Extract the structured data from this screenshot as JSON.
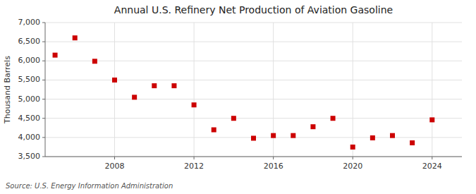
{
  "chart_data": {
    "type": "scatter",
    "title": "Annual U.S. Refinery Net Production of Aviation Gasoline",
    "y_label": "Thousand Barrels",
    "source": "Source: U.S. Energy Information Administration",
    "x": [
      2005,
      2006,
      2007,
      2008,
      2009,
      2010,
      2011,
      2012,
      2013,
      2014,
      2015,
      2016,
      2017,
      2018,
      2019,
      2020,
      2021,
      2022,
      2023,
      2024
    ],
    "values": [
      6150,
      6600,
      5990,
      5500,
      5050,
      5350,
      5350,
      4850,
      4200,
      4500,
      3980,
      4050,
      4050,
      4280,
      4500,
      3750,
      3990,
      4050,
      3860,
      4460
    ],
    "color": "#cc0000",
    "marker": "square",
    "xlim": [
      2004.5,
      2025.5
    ],
    "ylim": [
      3500,
      7000
    ],
    "xticks": [
      2008,
      2012,
      2016,
      2020,
      2024
    ],
    "yticks": [
      {
        "value": 3500,
        "label": "3,500"
      },
      {
        "value": 4000,
        "label": "4,000"
      },
      {
        "value": 4500,
        "label": "4,500"
      },
      {
        "value": 5000,
        "label": "5,000"
      },
      {
        "value": 5500,
        "label": "5,500"
      },
      {
        "value": 6000,
        "label": "6,000"
      },
      {
        "value": 6500,
        "label": "6,500"
      },
      {
        "value": 7000,
        "label": "7,000"
      }
    ],
    "grid": true
  }
}
